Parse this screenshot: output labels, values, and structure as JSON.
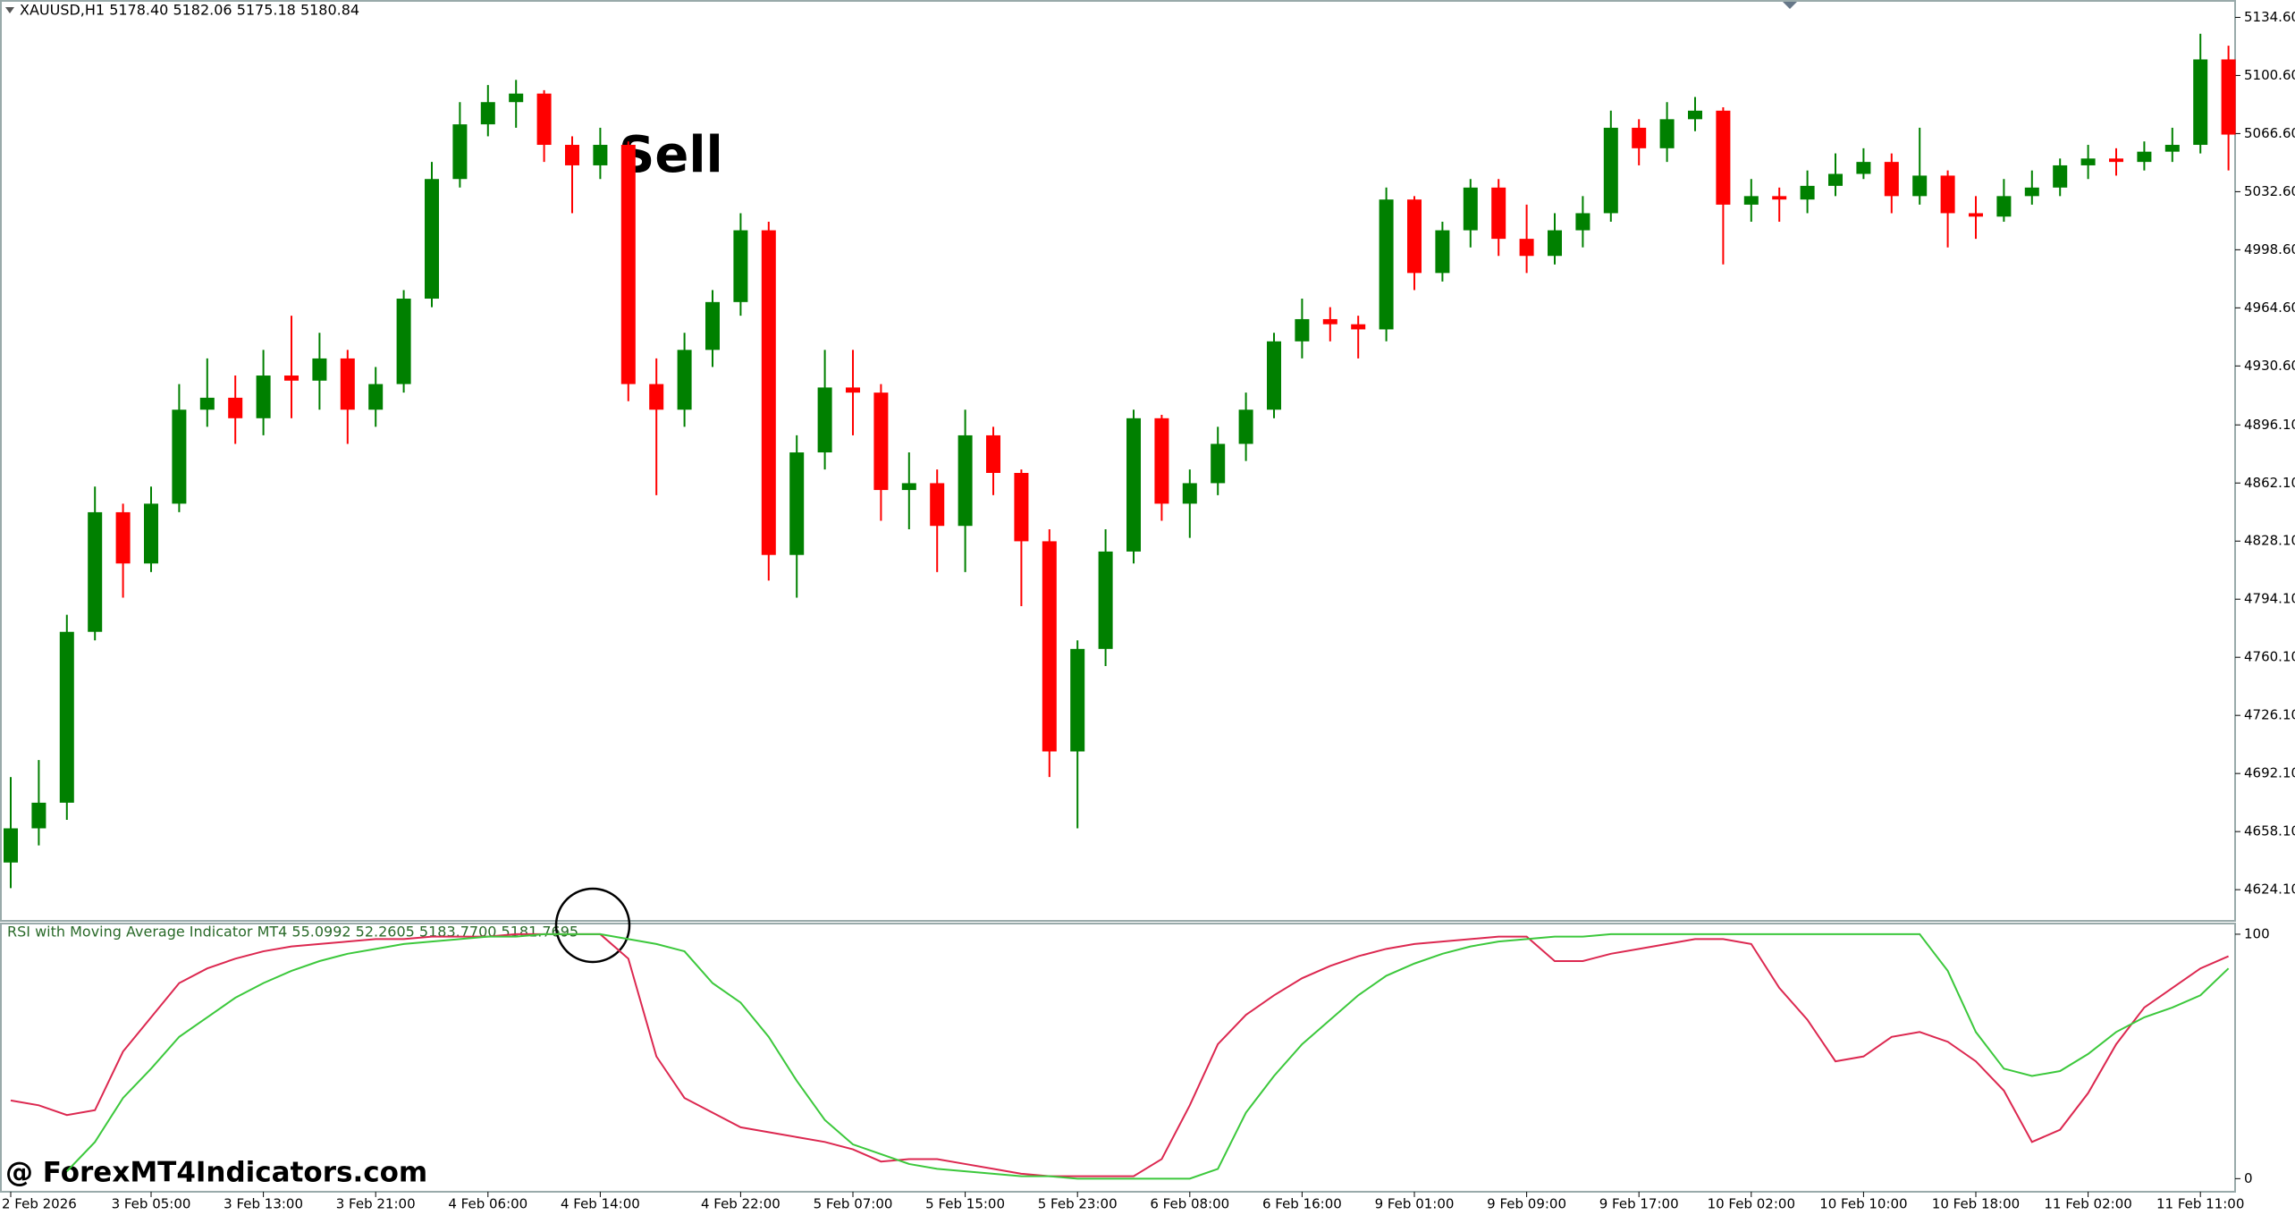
{
  "watermark": "@ ForexMT4Indicators.com",
  "chart_data": [
    {
      "type": "candlestick",
      "title": "XAUUSD,H1  5178.40 5182.06 5175.18 5180.84",
      "annotation": "Sell",
      "up_color": "#008000",
      "down_color": "#ff0000",
      "categories": [
        "2 Feb 2026",
        null,
        null,
        null,
        null,
        "3 Feb 05:00",
        null,
        null,
        null,
        "3 Feb 13:00",
        null,
        null,
        null,
        "3 Feb 21:00",
        null,
        null,
        null,
        "4 Feb 06:00",
        null,
        null,
        null,
        "4 Feb 14:00",
        null,
        null,
        null,
        null,
        "4 Feb 22:00",
        null,
        null,
        null,
        "5 Feb 07:00",
        null,
        null,
        null,
        "5 Feb 15:00",
        null,
        null,
        null,
        "5 Feb 23:00",
        null,
        null,
        null,
        "6 Feb 08:00",
        null,
        null,
        null,
        "6 Feb 16:00",
        null,
        null,
        null,
        "9 Feb 01:00",
        null,
        null,
        null,
        "9 Feb 09:00",
        null,
        null,
        null,
        "9 Feb 17:00",
        null,
        null,
        null,
        "10 Feb 02:00",
        null,
        null,
        null,
        "10 Feb 10:00",
        null,
        null,
        null,
        "10 Feb 18:00",
        null,
        null,
        null,
        "11 Feb 02:00",
        null,
        null,
        null,
        "11 Feb 11:00",
        null
      ],
      "open": [
        4640,
        4660,
        4675,
        4775,
        4845,
        4815,
        4850,
        4905,
        4912,
        4900,
        4925,
        4922,
        4935,
        4905,
        4920,
        4970,
        5040,
        5072,
        5085,
        5090,
        5060,
        5048,
        5060,
        4920,
        4905,
        4940,
        4968,
        5010,
        4820,
        4880,
        4918,
        4915,
        4858,
        4862,
        4837,
        4890,
        4868,
        4828,
        4705,
        4765,
        4822,
        4900,
        4850,
        4862,
        4885,
        4905,
        4945,
        4958,
        4955,
        4952,
        5028,
        4985,
        5010,
        5035,
        5005,
        4995,
        5010,
        5020,
        5070,
        5058,
        5075,
        5080,
        5025,
        5030,
        5028,
        5036,
        5043,
        5050,
        5030,
        5042,
        5020,
        5018,
        5030,
        5035,
        5048,
        5052,
        5050,
        5056,
        5060,
        5110
      ],
      "high": [
        4690,
        4700,
        4785,
        4860,
        4850,
        4860,
        4920,
        4935,
        4925,
        4940,
        4960,
        4950,
        4940,
        4930,
        4975,
        5050,
        5085,
        5095,
        5098,
        5092,
        5065,
        5070,
        5062,
        4935,
        4950,
        4975,
        5020,
        5015,
        4890,
        4940,
        4940,
        4920,
        4880,
        4870,
        4905,
        4895,
        4870,
        4835,
        4770,
        4835,
        4905,
        4902,
        4870,
        4895,
        4915,
        4950,
        4970,
        4965,
        4960,
        5035,
        5030,
        5015,
        5040,
        5040,
        5025,
        5020,
        5030,
        5080,
        5075,
        5085,
        5088,
        5082,
        5040,
        5035,
        5045,
        5055,
        5058,
        5055,
        5070,
        5045,
        5030,
        5040,
        5045,
        5052,
        5060,
        5058,
        5062,
        5070,
        5125,
        5118
      ],
      "low": [
        4625,
        4650,
        4665,
        4770,
        4795,
        4810,
        4845,
        4895,
        4885,
        4890,
        4900,
        4905,
        4885,
        4895,
        4915,
        4965,
        5035,
        5065,
        5070,
        5050,
        5020,
        5040,
        4910,
        4855,
        4895,
        4930,
        4960,
        4805,
        4795,
        4870,
        4890,
        4840,
        4835,
        4810,
        4810,
        4855,
        4790,
        4690,
        4660,
        4755,
        4815,
        4840,
        4830,
        4855,
        4875,
        4900,
        4935,
        4945,
        4935,
        4945,
        4975,
        4980,
        5000,
        4995,
        4985,
        4990,
        5000,
        5015,
        5048,
        5050,
        5068,
        4990,
        5015,
        5015,
        5020,
        5030,
        5040,
        5020,
        5025,
        5000,
        5005,
        5015,
        5025,
        5030,
        5040,
        5042,
        5045,
        5050,
        5055,
        5045
      ],
      "close": [
        4660,
        4675,
        4775,
        4845,
        4815,
        4850,
        4905,
        4912,
        4900,
        4925,
        4922,
        4935,
        4905,
        4920,
        4970,
        5040,
        5072,
        5085,
        5090,
        5060,
        5048,
        5060,
        4920,
        4905,
        4940,
        4968,
        5010,
        4820,
        4880,
        4918,
        4915,
        4858,
        4862,
        4837,
        4890,
        4868,
        4828,
        4705,
        4765,
        4822,
        4900,
        4850,
        4862,
        4885,
        4905,
        4945,
        4958,
        4955,
        4952,
        5028,
        4985,
        5010,
        5035,
        5005,
        4995,
        5010,
        5020,
        5070,
        5058,
        5075,
        5080,
        5025,
        5030,
        5028,
        5036,
        5043,
        5050,
        5030,
        5042,
        5020,
        5018,
        5030,
        5035,
        5048,
        5052,
        5050,
        5056,
        5060,
        5110,
        5066
      ],
      "ylim": [
        4606.9,
        5143.2
      ],
      "yticks": [
        {
          "value": 5134.6,
          "label": "5134.60"
        },
        {
          "value": 5100.6,
          "label": "5100.60"
        },
        {
          "value": 5066.6,
          "label": "5066.60"
        },
        {
          "value": 5032.6,
          "label": "5032.60"
        },
        {
          "value": 4998.6,
          "label": "4998.60"
        },
        {
          "value": 4964.6,
          "label": "4964.60"
        },
        {
          "value": 4930.6,
          "label": "4930.60"
        },
        {
          "value": 4896.1,
          "label": "4896.10"
        },
        {
          "value": 4862.1,
          "label": "4862.10"
        },
        {
          "value": 4828.1,
          "label": "4828.10"
        },
        {
          "value": 4794.1,
          "label": "4794.10"
        },
        {
          "value": 4760.1,
          "label": "4760.10"
        },
        {
          "value": 4726.1,
          "label": "4726.10"
        },
        {
          "value": 4692.1,
          "label": "4692.10"
        },
        {
          "value": 4658.1,
          "label": "4658.10"
        },
        {
          "value": 4624.1,
          "label": "4624.10"
        }
      ]
    },
    {
      "type": "line",
      "title": "RSI with Moving Average Indicator MT4 55.0992 52.2605 5183.7700 5181.7695",
      "series": [
        {
          "color": "#dc2850",
          "values": [
            32,
            30,
            26,
            28,
            52,
            66,
            80,
            86,
            90,
            93,
            95,
            96,
            97,
            98,
            98,
            99,
            99,
            99,
            100,
            100,
            100,
            100,
            90,
            50,
            33,
            27,
            21,
            19,
            17,
            15,
            12,
            7,
            8,
            8,
            6,
            4,
            2,
            1,
            1,
            1,
            1,
            8,
            30,
            55,
            67,
            75,
            82,
            87,
            91,
            94,
            96,
            97,
            98,
            99,
            99,
            89,
            89,
            92,
            94,
            96,
            98,
            98,
            96,
            78,
            65,
            48,
            50,
            58,
            60,
            56,
            48,
            36,
            15,
            20,
            35,
            55,
            70,
            78,
            86,
            91
          ]
        },
        {
          "color": "#3cc83c",
          "values": [
            null,
            null,
            3,
            15,
            33,
            45,
            58,
            66,
            74,
            80,
            85,
            89,
            92,
            94,
            96,
            97,
            98,
            99,
            99,
            100,
            100,
            100,
            98,
            96,
            93,
            80,
            72,
            58,
            40,
            24,
            14,
            10,
            6,
            4,
            3,
            2,
            1,
            1,
            0,
            0,
            0,
            0,
            0,
            4,
            27,
            42,
            55,
            65,
            75,
            83,
            88,
            92,
            95,
            97,
            98,
            99,
            99,
            100,
            100,
            100,
            100,
            100,
            100,
            100,
            100,
            100,
            100,
            100,
            100,
            85,
            60,
            45,
            42,
            44,
            51,
            60,
            66,
            70,
            75,
            86
          ]
        }
      ],
      "ylim": [
        -5,
        104
      ],
      "yticks": [
        100,
        0
      ]
    }
  ]
}
